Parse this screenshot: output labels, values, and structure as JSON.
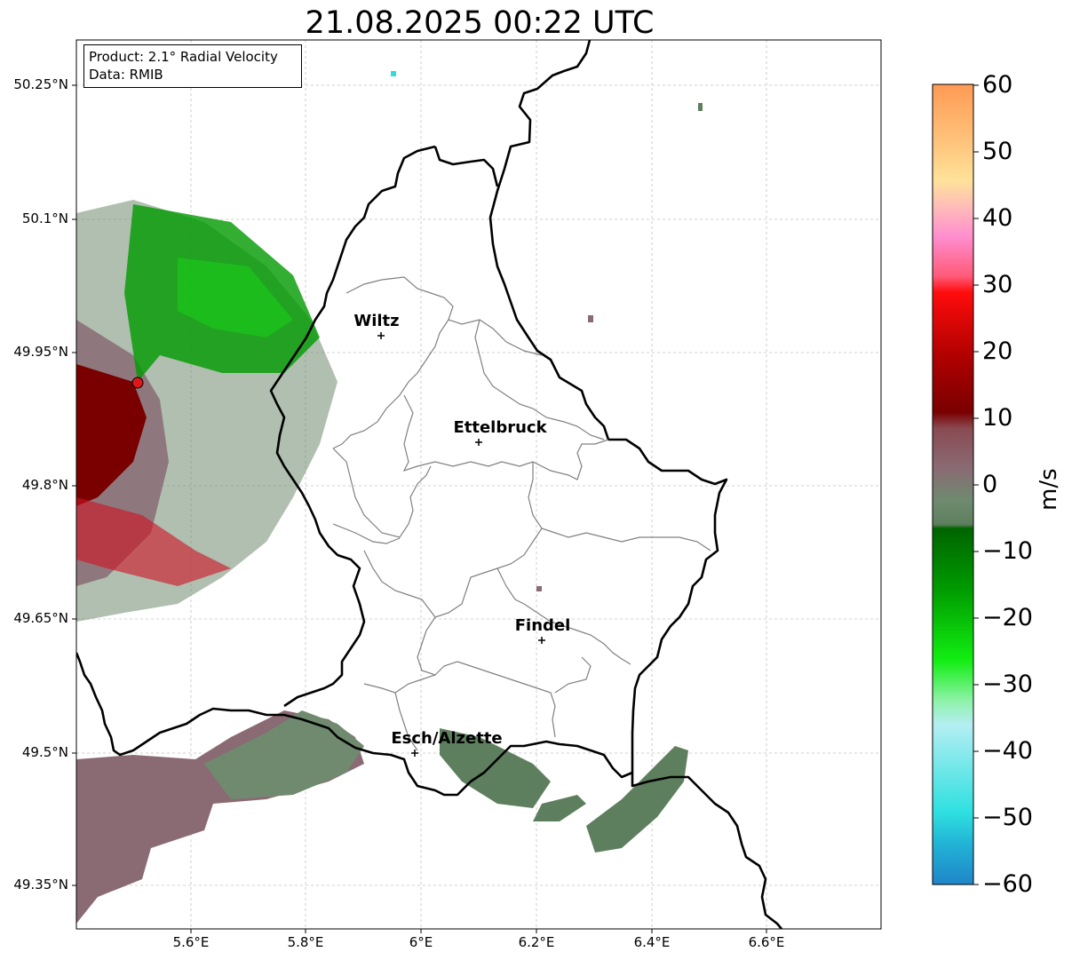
{
  "title": "21.08.2025 00:22 UTC",
  "info": {
    "product": "Product: 2.1° Radial Velocity",
    "source": "Data: RMIB"
  },
  "axes": {
    "lat_labels": [
      "50.25°N",
      "50.1°N",
      "49.95°N",
      "49.8°N",
      "49.65°N",
      "49.5°N",
      "49.35°N"
    ],
    "lon_labels": [
      "5.6°E",
      "5.8°E",
      "6°E",
      "6.2°E",
      "6.4°E",
      "6.6°E"
    ],
    "grid": true
  },
  "cities": [
    {
      "name": "Wiltz"
    },
    {
      "name": "Ettelbruck"
    },
    {
      "name": "Findel"
    },
    {
      "name": "Esch/Alzette"
    }
  ],
  "radar_site": {
    "lat": 49.914,
    "lon": 5.505,
    "color": "#e0161b"
  },
  "colorbar": {
    "unit": "m/s",
    "ticks": [
      "60",
      "50",
      "40",
      "30",
      "20",
      "10",
      "0",
      "−10",
      "−20",
      "−30",
      "−40",
      "−50",
      "−60"
    ],
    "range": [
      -60,
      60
    ]
  }
}
